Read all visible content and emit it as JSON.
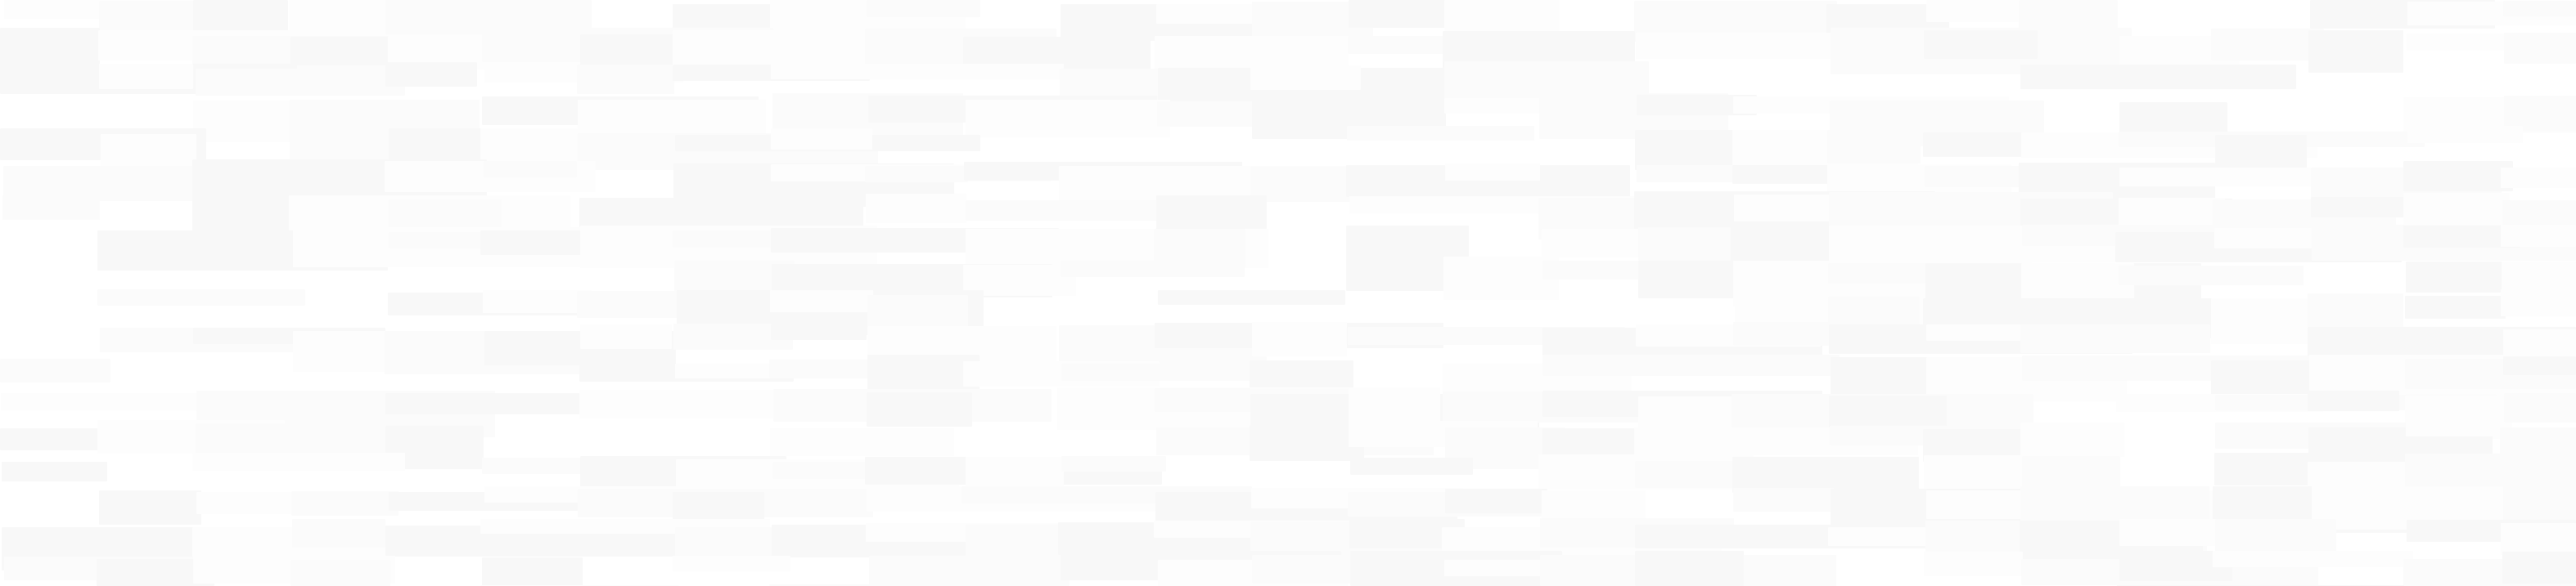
{
  "colors": {
    "background": "#ffffff",
    "tile_light": "#fdfdfd",
    "tile_mid": "#fbfbfb",
    "tile_dark": "#f8f8f8"
  },
  "icons": {
    "pattern": "abstract-offset-block-pattern"
  }
}
